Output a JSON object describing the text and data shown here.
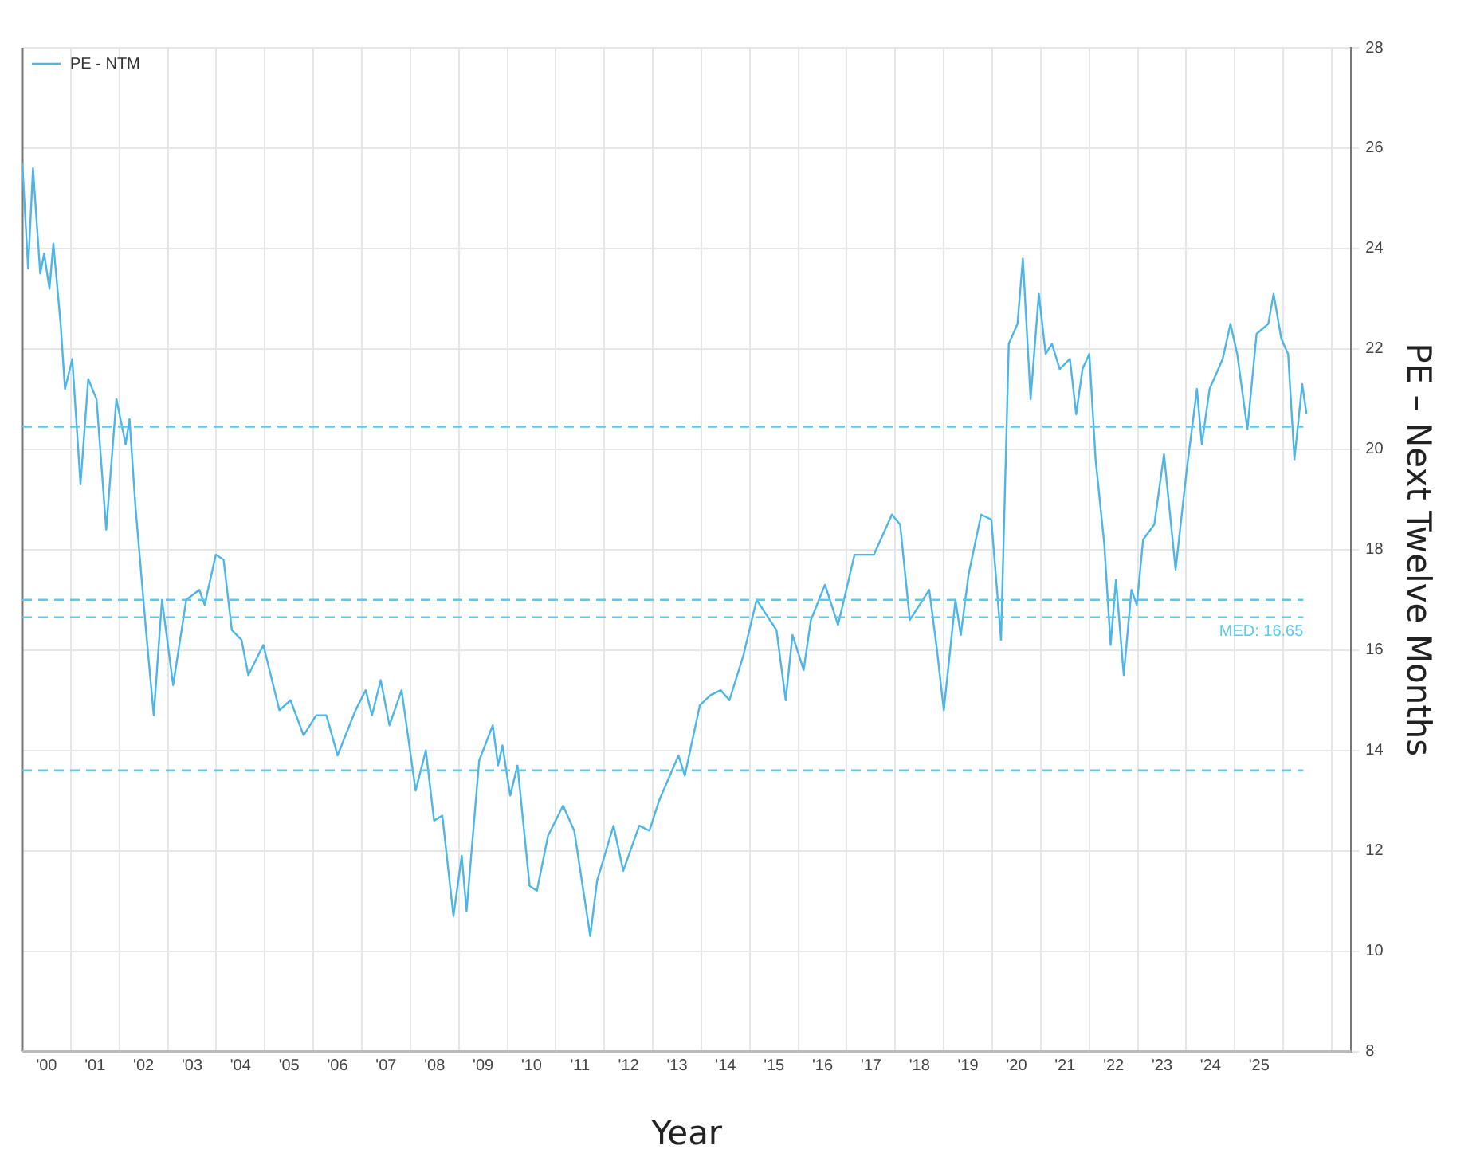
{
  "chart_data": {
    "type": "line",
    "xlabel": "Year",
    "ylabel": "PE – Next Twelve Months",
    "legend": "top left",
    "grid": true,
    "marker": "none",
    "line_style": "solid",
    "xlim": [
      1999.5,
      2026.9
    ],
    "ylim": [
      8,
      28
    ],
    "yticks": [
      8,
      10,
      12,
      14,
      16,
      18,
      20,
      22,
      24,
      26,
      28
    ],
    "xticks": [
      {
        "value": 2000,
        "label": "'00"
      },
      {
        "value": 2001,
        "label": "'01"
      },
      {
        "value": 2002,
        "label": "'02"
      },
      {
        "value": 2003,
        "label": "'03"
      },
      {
        "value": 2004,
        "label": "'04"
      },
      {
        "value": 2005,
        "label": "'05"
      },
      {
        "value": 2006,
        "label": "'06"
      },
      {
        "value": 2007,
        "label": "'07"
      },
      {
        "value": 2008,
        "label": "'08"
      },
      {
        "value": 2009,
        "label": "'09"
      },
      {
        "value": 2010,
        "label": "'10"
      },
      {
        "value": 2011,
        "label": "'11"
      },
      {
        "value": 2012,
        "label": "'12"
      },
      {
        "value": 2013,
        "label": "'13"
      },
      {
        "value": 2014,
        "label": "'14"
      },
      {
        "value": 2015,
        "label": "'15"
      },
      {
        "value": 2016,
        "label": "'16"
      },
      {
        "value": 2017,
        "label": "'17"
      },
      {
        "value": 2018,
        "label": "'18"
      },
      {
        "value": 2019,
        "label": "'19"
      },
      {
        "value": 2020,
        "label": "'20"
      },
      {
        "value": 2021,
        "label": "'21"
      },
      {
        "value": 2022,
        "label": "'22"
      },
      {
        "value": 2023,
        "label": "'23"
      },
      {
        "value": 2024,
        "label": "'24"
      },
      {
        "value": 2025,
        "label": "'25"
      },
      {
        "value": 2000.5,
        "label": null
      },
      {
        "value": 2001.5,
        "label": null
      },
      {
        "value": 2002.5,
        "label": null
      },
      {
        "value": 2003.5,
        "label": null
      },
      {
        "value": 2004.5,
        "label": null
      },
      {
        "value": 2005.5,
        "label": null
      },
      {
        "value": 2006.5,
        "label": null
      },
      {
        "value": 2007.5,
        "label": null
      },
      {
        "value": 2008.5,
        "label": null
      },
      {
        "value": 2009.5,
        "label": null
      },
      {
        "value": 2010.5,
        "label": null
      },
      {
        "value": 2011.5,
        "label": null
      },
      {
        "value": 2012.5,
        "label": null
      },
      {
        "value": 2013.5,
        "label": null
      },
      {
        "value": 2014.5,
        "label": null
      },
      {
        "value": 2015.5,
        "label": null
      },
      {
        "value": 2016.5,
        "label": null
      },
      {
        "value": 2017.5,
        "label": null
      },
      {
        "value": 2018.5,
        "label": null
      },
      {
        "value": 2019.5,
        "label": null
      },
      {
        "value": 2020.5,
        "label": null
      },
      {
        "value": 2021.5,
        "label": null
      },
      {
        "value": 2022.5,
        "label": null
      },
      {
        "value": 2023.5,
        "label": null
      },
      {
        "value": 2024.5,
        "label": null
      },
      {
        "value": 2025.5,
        "label": null
      },
      {
        "value": 2026.5,
        "label": null
      }
    ],
    "ref_lines": [
      {
        "axis": "y",
        "value": 20.45,
        "label": null,
        "color": "#5bc8ec",
        "line_style": "dashed"
      },
      {
        "axis": "y",
        "value": 17.0,
        "label": null,
        "color": "#5bc8ec",
        "line_style": "dashed"
      },
      {
        "axis": "y",
        "value": 16.65,
        "label": "MED: 16.65",
        "color": "#5bc8ec",
        "line_style": "dashed"
      },
      {
        "axis": "y",
        "value": 13.6,
        "label": null,
        "color": "#5bc8ec",
        "line_style": "dashed"
      }
    ],
    "series": [
      {
        "name": "PE - NTM",
        "color": "#4db6e6",
        "x": [
          1999.5,
          1999.62,
          1999.72,
          1999.87,
          1999.95,
          2000.06,
          2000.14,
          2000.29,
          2000.38,
          2000.53,
          2000.7,
          2000.86,
          2001.03,
          2001.23,
          2001.44,
          2001.63,
          2001.71,
          2001.83,
          2002.05,
          2002.21,
          2002.38,
          2002.61,
          2002.88,
          2003.15,
          2003.26,
          2003.49,
          2003.65,
          2003.82,
          2004.02,
          2004.16,
          2004.47,
          2004.8,
          2005.03,
          2005.3,
          2005.56,
          2005.77,
          2006.0,
          2006.37,
          2006.58,
          2006.71,
          2006.89,
          2007.07,
          2007.32,
          2007.61,
          2007.82,
          2007.99,
          2008.16,
          2008.39,
          2008.56,
          2008.66,
          2008.92,
          2009.2,
          2009.31,
          2009.4,
          2009.56,
          2009.71,
          2009.96,
          2010.11,
          2010.34,
          2010.65,
          2010.88,
          2011.21,
          2011.35,
          2011.69,
          2011.89,
          2012.22,
          2012.43,
          2012.63,
          2013.03,
          2013.16,
          2013.47,
          2013.69,
          2013.9,
          2014.08,
          2014.37,
          2014.64,
          2015.05,
          2015.24,
          2015.38,
          2015.61,
          2015.76,
          2016.05,
          2016.32,
          2016.66,
          2017.06,
          2017.43,
          2017.6,
          2017.8,
          2018.2,
          2018.36,
          2018.5,
          2018.74,
          2018.85,
          2019.01,
          2019.27,
          2019.48,
          2019.68,
          2019.84,
          2020.02,
          2020.13,
          2020.29,
          2020.46,
          2020.6,
          2020.73,
          2020.89,
          2021.1,
          2021.23,
          2021.36,
          2021.5,
          2021.63,
          2021.81,
          2021.94,
          2022.05,
          2022.21,
          2022.37,
          2022.48,
          2022.61,
          2022.84,
          2023.04,
          2023.28,
          2023.51,
          2023.72,
          2023.82,
          2023.98,
          2024.25,
          2024.41,
          2024.55,
          2024.76,
          2024.95,
          2025.19,
          2025.3,
          2025.46,
          2025.6,
          2025.73,
          2025.89,
          2025.98
        ],
        "values": [
          25.7,
          23.6,
          25.6,
          23.5,
          23.9,
          23.2,
          24.1,
          22.5,
          21.2,
          21.8,
          19.3,
          21.4,
          21.0,
          18.4,
          21.0,
          20.1,
          20.6,
          18.9,
          16.4,
          14.7,
          17.0,
          15.3,
          17.0,
          17.2,
          16.9,
          17.9,
          17.8,
          16.4,
          16.2,
          15.5,
          16.1,
          14.8,
          15.0,
          14.3,
          14.7,
          14.7,
          13.9,
          14.8,
          15.2,
          14.7,
          15.4,
          14.5,
          15.2,
          13.2,
          14.0,
          12.6,
          12.7,
          10.7,
          11.9,
          10.8,
          13.8,
          14.5,
          13.7,
          14.1,
          13.1,
          13.7,
          11.3,
          11.2,
          12.3,
          12.9,
          12.4,
          10.3,
          11.4,
          12.5,
          11.6,
          12.5,
          12.4,
          13.0,
          13.9,
          13.5,
          14.9,
          15.1,
          15.2,
          15.0,
          15.9,
          17.0,
          16.4,
          15.0,
          16.3,
          15.6,
          16.6,
          17.3,
          16.5,
          17.9,
          17.9,
          18.7,
          18.5,
          16.6,
          17.2,
          16.0,
          14.8,
          17.0,
          16.3,
          17.5,
          18.7,
          18.6,
          16.2,
          22.1,
          22.5,
          23.8,
          21.0,
          23.1,
          21.9,
          22.1,
          21.6,
          21.8,
          20.7,
          21.6,
          21.9,
          19.8,
          18.1,
          16.1,
          17.4,
          15.5,
          17.2,
          16.9,
          18.2,
          18.5,
          19.9,
          17.6,
          19.6,
          21.2,
          20.1,
          21.2,
          21.8,
          22.5,
          21.9,
          20.4,
          22.3,
          22.5,
          23.1,
          22.2,
          21.9,
          19.8,
          21.3,
          20.7
        ]
      }
    ]
  }
}
